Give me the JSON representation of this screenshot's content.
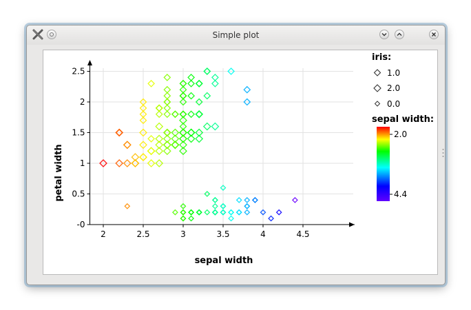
{
  "window": {
    "title": "Simple plot",
    "buttons": {
      "menu": "menu",
      "minimize": "minimize",
      "maximize": "maximize",
      "close": "close"
    }
  },
  "icons": {
    "app": "x-app-icon",
    "menu": "circle-menu-icon",
    "minimize": "chevron-down-icon",
    "maximize": "chevron-up-icon",
    "close": "close-icon"
  },
  "chart_data": {
    "type": "scatter",
    "xlabel": "sepal width",
    "ylabel": "petal width",
    "xlim": [
      1.9,
      4.5
    ],
    "ylim": [
      0,
      2.5
    ],
    "x_ticks": [
      2,
      2.5,
      3,
      3.5,
      4,
      4.5
    ],
    "x_tick_labels": [
      "2",
      "2.5",
      "3",
      "3.5",
      "4",
      "4.5"
    ],
    "y_ticks": [
      0,
      0.5,
      1,
      1.5,
      2,
      2.5
    ],
    "y_tick_labels": [
      "-0",
      "0.5",
      "1",
      "1.5",
      "2",
      "2.5"
    ],
    "grid": true,
    "marker": "diamond",
    "legend": {
      "placement": "right",
      "size_title": "iris:",
      "size_entries": [
        "1.0",
        "2.0",
        "0.0"
      ],
      "color_title": "sepal width:",
      "color_min_label": "2.0",
      "color_max_label": "4.4",
      "color_range": [
        2.0,
        4.4
      ]
    },
    "series": [
      {
        "iris": 0,
        "points": [
          [
            3.5,
            0.2
          ],
          [
            3.0,
            0.2
          ],
          [
            3.2,
            0.2
          ],
          [
            3.1,
            0.2
          ],
          [
            3.6,
            0.2
          ],
          [
            3.9,
            0.4
          ],
          [
            3.4,
            0.3
          ],
          [
            3.4,
            0.2
          ],
          [
            2.9,
            0.2
          ],
          [
            3.1,
            0.1
          ],
          [
            3.7,
            0.2
          ],
          [
            3.4,
            0.2
          ],
          [
            3.0,
            0.1
          ],
          [
            3.0,
            0.1
          ],
          [
            4.0,
            0.2
          ],
          [
            4.4,
            0.4
          ],
          [
            3.9,
            0.4
          ],
          [
            3.5,
            0.3
          ],
          [
            3.8,
            0.3
          ],
          [
            3.8,
            0.3
          ],
          [
            3.4,
            0.2
          ],
          [
            3.7,
            0.4
          ],
          [
            3.6,
            0.2
          ],
          [
            3.3,
            0.5
          ],
          [
            3.4,
            0.2
          ],
          [
            3.0,
            0.2
          ],
          [
            3.4,
            0.4
          ],
          [
            3.5,
            0.2
          ],
          [
            3.4,
            0.2
          ],
          [
            3.2,
            0.2
          ],
          [
            3.1,
            0.2
          ],
          [
            3.4,
            0.4
          ],
          [
            4.1,
            0.1
          ],
          [
            4.2,
            0.2
          ],
          [
            3.1,
            0.2
          ],
          [
            3.2,
            0.2
          ],
          [
            3.5,
            0.2
          ],
          [
            3.6,
            0.1
          ],
          [
            3.0,
            0.2
          ],
          [
            3.4,
            0.2
          ],
          [
            3.5,
            0.3
          ],
          [
            2.3,
            0.3
          ],
          [
            3.2,
            0.2
          ],
          [
            3.5,
            0.6
          ],
          [
            3.8,
            0.4
          ],
          [
            3.0,
            0.3
          ],
          [
            3.8,
            0.2
          ],
          [
            3.2,
            0.2
          ],
          [
            3.7,
            0.2
          ],
          [
            3.3,
            0.2
          ]
        ]
      },
      {
        "iris": 1,
        "points": [
          [
            3.2,
            1.4
          ],
          [
            3.2,
            1.5
          ],
          [
            3.1,
            1.5
          ],
          [
            2.3,
            1.3
          ],
          [
            2.8,
            1.5
          ],
          [
            2.8,
            1.3
          ],
          [
            3.3,
            1.6
          ],
          [
            2.4,
            1.0
          ],
          [
            2.9,
            1.3
          ],
          [
            2.7,
            1.4
          ],
          [
            2.0,
            1.0
          ],
          [
            3.0,
            1.5
          ],
          [
            2.2,
            1.0
          ],
          [
            2.9,
            1.4
          ],
          [
            2.9,
            1.3
          ],
          [
            3.1,
            1.4
          ],
          [
            3.0,
            1.5
          ],
          [
            2.7,
            1.0
          ],
          [
            2.2,
            1.5
          ],
          [
            2.5,
            1.1
          ],
          [
            3.2,
            1.8
          ],
          [
            2.8,
            1.3
          ],
          [
            2.5,
            1.5
          ],
          [
            2.8,
            1.2
          ],
          [
            2.9,
            1.3
          ],
          [
            3.0,
            1.4
          ],
          [
            2.8,
            1.4
          ],
          [
            3.0,
            1.7
          ],
          [
            2.9,
            1.5
          ],
          [
            2.6,
            1.0
          ],
          [
            2.4,
            1.1
          ],
          [
            2.4,
            1.0
          ],
          [
            2.7,
            1.2
          ],
          [
            2.7,
            1.6
          ],
          [
            3.0,
            1.5
          ],
          [
            3.4,
            1.6
          ],
          [
            3.1,
            1.5
          ],
          [
            2.3,
            1.3
          ],
          [
            3.0,
            1.3
          ],
          [
            2.5,
            1.3
          ],
          [
            2.6,
            1.2
          ],
          [
            3.0,
            1.4
          ],
          [
            2.6,
            1.2
          ],
          [
            2.3,
            1.0
          ],
          [
            2.7,
            1.3
          ],
          [
            3.0,
            1.2
          ],
          [
            2.9,
            1.3
          ],
          [
            2.9,
            1.3
          ],
          [
            2.5,
            1.1
          ],
          [
            2.8,
            1.3
          ]
        ]
      },
      {
        "iris": 2,
        "points": [
          [
            3.3,
            2.5
          ],
          [
            2.7,
            1.9
          ],
          [
            3.0,
            2.1
          ],
          [
            2.9,
            1.8
          ],
          [
            3.0,
            2.2
          ],
          [
            3.0,
            2.1
          ],
          [
            2.5,
            1.7
          ],
          [
            2.9,
            1.8
          ],
          [
            2.5,
            1.8
          ],
          [
            3.6,
            2.5
          ],
          [
            3.2,
            2.0
          ],
          [
            2.7,
            1.9
          ],
          [
            3.0,
            2.1
          ],
          [
            2.5,
            2.0
          ],
          [
            2.8,
            2.4
          ],
          [
            3.2,
            2.3
          ],
          [
            3.0,
            1.8
          ],
          [
            3.8,
            2.2
          ],
          [
            2.6,
            2.3
          ],
          [
            2.2,
            1.5
          ],
          [
            3.2,
            2.3
          ],
          [
            2.8,
            2.0
          ],
          [
            2.8,
            2.0
          ],
          [
            2.7,
            1.8
          ],
          [
            3.3,
            2.1
          ],
          [
            3.2,
            1.8
          ],
          [
            2.8,
            1.8
          ],
          [
            3.0,
            1.8
          ],
          [
            2.8,
            2.1
          ],
          [
            3.0,
            1.6
          ],
          [
            2.8,
            1.9
          ],
          [
            3.8,
            2.0
          ],
          [
            2.8,
            2.2
          ],
          [
            2.8,
            1.5
          ],
          [
            2.6,
            1.4
          ],
          [
            3.0,
            2.3
          ],
          [
            3.4,
            2.4
          ],
          [
            3.1,
            1.8
          ],
          [
            3.0,
            1.8
          ],
          [
            3.1,
            2.1
          ],
          [
            3.1,
            2.4
          ],
          [
            3.1,
            2.3
          ],
          [
            2.7,
            1.9
          ],
          [
            3.2,
            2.3
          ],
          [
            3.3,
            2.5
          ],
          [
            3.0,
            2.3
          ],
          [
            2.5,
            1.9
          ],
          [
            3.0,
            2.0
          ],
          [
            3.4,
            2.3
          ],
          [
            3.0,
            1.8
          ]
        ]
      }
    ]
  }
}
